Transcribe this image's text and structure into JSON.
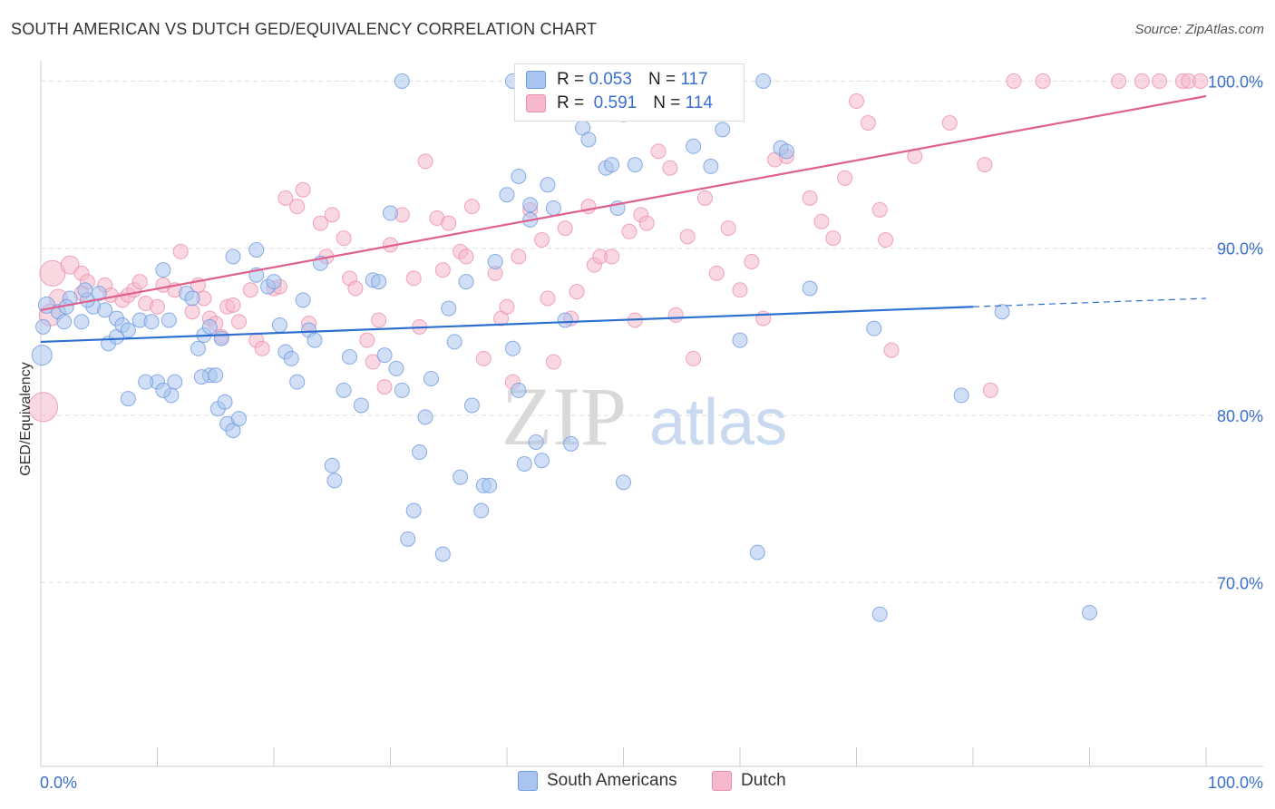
{
  "title": "SOUTH AMERICAN VS DUTCH GED/EQUIVALENCY CORRELATION CHART",
  "source": "Source: ZipAtlas.com",
  "watermark": {
    "zip": "ZIP",
    "atlas": "atlas"
  },
  "legend": {
    "rows": [
      {
        "r_label": "R =",
        "r_value": "0.053",
        "n_label": "N =",
        "n_value": "117"
      },
      {
        "r_label": "R =",
        "r_value": "0.591",
        "n_label": "N =",
        "n_value": "114"
      }
    ]
  },
  "bottom_legend": {
    "south_americans": "South Americans",
    "dutch": "Dutch"
  },
  "colors": {
    "blue_fill": "#a9c5ef",
    "blue_stroke": "#6f9be0",
    "blue_line": "#2d6fd0",
    "pink_fill": "#f6b8cb",
    "pink_stroke": "#ec8fae",
    "pink_line": "#e0608e",
    "tick_text": "#3a6fd0",
    "grid": "#dddddd"
  },
  "chart_data": {
    "type": "scatter",
    "title": "SOUTH AMERICAN VS DUTCH GED/EQUIVALENCY CORRELATION CHART",
    "xlabel": "",
    "ylabel": "GED/Equivalency",
    "xlim": [
      0,
      100
    ],
    "ylim": [
      59,
      101
    ],
    "x_tick_labels": [
      "0.0%",
      "100.0%"
    ],
    "y_ticks": [
      {
        "value": 100,
        "label": "100.0%"
      },
      {
        "value": 90,
        "label": "90.0%"
      },
      {
        "value": 80,
        "label": "80.0%"
      },
      {
        "value": 70,
        "label": "70.0%"
      }
    ],
    "grid": true,
    "legend_position": "top-center",
    "series": [
      {
        "name": "South Americans",
        "R": 0.053,
        "N": 117,
        "trend": {
          "x0": 0,
          "y0": 84.4,
          "x1": 80,
          "y1": 86.5,
          "dash_to_x": 100,
          "dash_to_y": 87.0
        },
        "points": [
          [
            0.5,
            86.6,
            9
          ],
          [
            1.5,
            86.2,
            8
          ],
          [
            2.0,
            85.6,
            8
          ],
          [
            2.5,
            87.0,
            8
          ],
          [
            2.2,
            86.5,
            8
          ],
          [
            0.2,
            85.3,
            8
          ],
          [
            0.1,
            83.6,
            11
          ],
          [
            4.5,
            86.5,
            8
          ],
          [
            3.5,
            85.6,
            8
          ],
          [
            4.0,
            86.9,
            8
          ],
          [
            3.8,
            87.5,
            8
          ],
          [
            5.5,
            86.3,
            8
          ],
          [
            5.0,
            87.3,
            8
          ],
          [
            6.5,
            85.8,
            8
          ],
          [
            5.8,
            84.3,
            8
          ],
          [
            6.5,
            84.7,
            8
          ],
          [
            7.0,
            85.4,
            8
          ],
          [
            7.5,
            85.1,
            8
          ],
          [
            8.5,
            85.7,
            8
          ],
          [
            9.5,
            85.6,
            8
          ],
          [
            10.5,
            88.7,
            8
          ],
          [
            11.0,
            85.7,
            8
          ],
          [
            12.5,
            87.3,
            8
          ],
          [
            13.0,
            87.0,
            8
          ],
          [
            10.0,
            82.0,
            8
          ],
          [
            11.5,
            82.0,
            8
          ],
          [
            11.2,
            81.2,
            8
          ],
          [
            10.5,
            81.5,
            8
          ],
          [
            9.0,
            82.0,
            8
          ],
          [
            7.5,
            81.0,
            8
          ],
          [
            14.5,
            82.4,
            8
          ],
          [
            13.8,
            82.3,
            8
          ],
          [
            15.0,
            82.4,
            8
          ],
          [
            15.2,
            80.4,
            8
          ],
          [
            15.8,
            80.8,
            8
          ],
          [
            16.0,
            79.5,
            8
          ],
          [
            16.5,
            79.1,
            8
          ],
          [
            17.0,
            79.8,
            8
          ],
          [
            14.0,
            84.8,
            8
          ],
          [
            14.5,
            85.3,
            8
          ],
          [
            15.5,
            84.6,
            8
          ],
          [
            13.5,
            84.0,
            8
          ],
          [
            16.5,
            89.5,
            8
          ],
          [
            18.5,
            89.9,
            8
          ],
          [
            18.5,
            88.4,
            8
          ],
          [
            19.5,
            87.7,
            8
          ],
          [
            20.0,
            88.0,
            8
          ],
          [
            20.5,
            85.4,
            8
          ],
          [
            21.0,
            83.8,
            8
          ],
          [
            21.5,
            83.4,
            8
          ],
          [
            22.0,
            82.0,
            8
          ],
          [
            22.5,
            86.9,
            8
          ],
          [
            23.0,
            85.1,
            8
          ],
          [
            23.5,
            84.5,
            8
          ],
          [
            24.0,
            89.1,
            8
          ],
          [
            25.0,
            77.0,
            8
          ],
          [
            25.2,
            76.1,
            8
          ],
          [
            26.0,
            81.5,
            8
          ],
          [
            26.5,
            83.5,
            8
          ],
          [
            27.5,
            80.6,
            8
          ],
          [
            28.5,
            88.1,
            8
          ],
          [
            29.0,
            88.0,
            8
          ],
          [
            30.0,
            92.1,
            8
          ],
          [
            29.5,
            83.6,
            8
          ],
          [
            30.5,
            82.8,
            8
          ],
          [
            31.0,
            81.5,
            8
          ],
          [
            32.0,
            74.3,
            8
          ],
          [
            31.5,
            72.6,
            8
          ],
          [
            32.5,
            77.8,
            8
          ],
          [
            33.0,
            79.9,
            8
          ],
          [
            33.5,
            82.2,
            8
          ],
          [
            34.5,
            71.7,
            8
          ],
          [
            35.0,
            86.4,
            8
          ],
          [
            35.5,
            84.4,
            8
          ],
          [
            36.0,
            76.3,
            8
          ],
          [
            36.5,
            88.0,
            8
          ],
          [
            37.0,
            80.6,
            8
          ],
          [
            37.8,
            74.3,
            8
          ],
          [
            38.0,
            75.8,
            8
          ],
          [
            38.5,
            75.8,
            8
          ],
          [
            39.0,
            89.2,
            8
          ],
          [
            40.0,
            93.2,
            8
          ],
          [
            40.5,
            84.0,
            8
          ],
          [
            41.0,
            81.5,
            8
          ],
          [
            41.5,
            77.1,
            8
          ],
          [
            42.0,
            91.7,
            8
          ],
          [
            42.5,
            78.4,
            8
          ],
          [
            43.0,
            77.3,
            8
          ],
          [
            43.5,
            93.8,
            8
          ],
          [
            44.0,
            92.4,
            8
          ],
          [
            45.0,
            85.7,
            8
          ],
          [
            45.5,
            78.3,
            8
          ],
          [
            46.5,
            97.2,
            8
          ],
          [
            47.0,
            96.5,
            8
          ],
          [
            48.5,
            94.8,
            8
          ],
          [
            49.0,
            95.0,
            8
          ],
          [
            31.0,
            100.0,
            8
          ],
          [
            40.5,
            100.0,
            8
          ],
          [
            41.0,
            94.3,
            8
          ],
          [
            42.0,
            92.6,
            8
          ],
          [
            50.0,
            76.0,
            8
          ],
          [
            49.5,
            92.4,
            8
          ],
          [
            51.0,
            95.0,
            8
          ],
          [
            52.5,
            100.0,
            8
          ],
          [
            55.5,
            100.0,
            8
          ],
          [
            56.0,
            96.1,
            8
          ],
          [
            57.5,
            94.9,
            8
          ],
          [
            58.5,
            97.1,
            8
          ],
          [
            60.0,
            84.5,
            8
          ],
          [
            61.5,
            71.8,
            8
          ],
          [
            62.0,
            100.0,
            8
          ],
          [
            63.5,
            96.0,
            8
          ],
          [
            64.0,
            95.8,
            8
          ],
          [
            66.0,
            87.6,
            8
          ],
          [
            71.5,
            85.2,
            8
          ],
          [
            72.0,
            68.1,
            8
          ],
          [
            79.0,
            81.2,
            8
          ],
          [
            82.5,
            86.2,
            8
          ],
          [
            90.0,
            68.2,
            8
          ]
        ]
      },
      {
        "name": "Dutch",
        "R": 0.591,
        "N": 114,
        "trend": {
          "x0": 0,
          "y0": 86.3,
          "x1": 100,
          "y1": 99.1
        },
        "points": [
          [
            0.2,
            80.5,
            16
          ],
          [
            1.0,
            88.5,
            14
          ],
          [
            1.5,
            87.0,
            10
          ],
          [
            0.8,
            86.0,
            12
          ],
          [
            2.5,
            89.0,
            10
          ],
          [
            3.5,
            88.5,
            8
          ],
          [
            4.0,
            88.0,
            8
          ],
          [
            3.5,
            87.3,
            8
          ],
          [
            5.5,
            87.8,
            8
          ],
          [
            6.0,
            87.2,
            8
          ],
          [
            7.0,
            86.9,
            8
          ],
          [
            7.5,
            87.2,
            8
          ],
          [
            8.0,
            87.5,
            8
          ],
          [
            8.5,
            88.0,
            8
          ],
          [
            9.0,
            86.7,
            8
          ],
          [
            10.0,
            86.5,
            8
          ],
          [
            10.5,
            87.8,
            8
          ],
          [
            11.5,
            87.5,
            8
          ],
          [
            12.0,
            89.8,
            8
          ],
          [
            13.0,
            86.2,
            8
          ],
          [
            13.5,
            87.8,
            8
          ],
          [
            14.0,
            87.0,
            8
          ],
          [
            14.5,
            85.8,
            8
          ],
          [
            15.0,
            85.5,
            8
          ],
          [
            15.5,
            84.7,
            8
          ],
          [
            16.0,
            86.5,
            8
          ],
          [
            16.5,
            86.6,
            8
          ],
          [
            17.0,
            85.6,
            8
          ],
          [
            18.0,
            87.5,
            8
          ],
          [
            18.5,
            84.5,
            8
          ],
          [
            19.0,
            84.0,
            8
          ],
          [
            20.0,
            87.6,
            8
          ],
          [
            20.5,
            87.7,
            8
          ],
          [
            21.0,
            93.0,
            8
          ],
          [
            22.0,
            92.5,
            8
          ],
          [
            22.5,
            93.5,
            8
          ],
          [
            23.0,
            85.5,
            8
          ],
          [
            24.0,
            91.5,
            8
          ],
          [
            24.5,
            89.5,
            8
          ],
          [
            25.0,
            92.0,
            8
          ],
          [
            26.0,
            90.6,
            8
          ],
          [
            26.5,
            88.2,
            8
          ],
          [
            27.0,
            87.6,
            8
          ],
          [
            28.0,
            84.5,
            8
          ],
          [
            28.5,
            83.2,
            8
          ],
          [
            29.0,
            85.7,
            8
          ],
          [
            29.5,
            81.7,
            8
          ],
          [
            30.0,
            90.2,
            8
          ],
          [
            31.0,
            92.0,
            8
          ],
          [
            32.0,
            88.2,
            8
          ],
          [
            32.5,
            85.3,
            8
          ],
          [
            33.0,
            95.2,
            8
          ],
          [
            34.0,
            91.8,
            8
          ],
          [
            34.5,
            88.7,
            8
          ],
          [
            35.0,
            91.5,
            8
          ],
          [
            36.0,
            89.8,
            8
          ],
          [
            36.5,
            89.5,
            8
          ],
          [
            37.0,
            92.5,
            8
          ],
          [
            38.0,
            83.4,
            8
          ],
          [
            39.0,
            88.5,
            8
          ],
          [
            39.5,
            85.8,
            8
          ],
          [
            40.0,
            86.5,
            8
          ],
          [
            40.5,
            82.0,
            8
          ],
          [
            41.0,
            89.5,
            8
          ],
          [
            42.0,
            92.3,
            8
          ],
          [
            43.0,
            90.5,
            8
          ],
          [
            43.5,
            87.0,
            8
          ],
          [
            44.0,
            83.2,
            8
          ],
          [
            45.0,
            91.2,
            8
          ],
          [
            45.5,
            85.8,
            8
          ],
          [
            46.0,
            87.4,
            8
          ],
          [
            47.0,
            92.5,
            8
          ],
          [
            47.5,
            89.0,
            8
          ],
          [
            48.0,
            89.5,
            8
          ],
          [
            49.0,
            89.5,
            8
          ],
          [
            50.0,
            98.0,
            8
          ],
          [
            50.5,
            91.0,
            8
          ],
          [
            51.0,
            85.7,
            8
          ],
          [
            51.5,
            92.0,
            8
          ],
          [
            52.0,
            91.5,
            8
          ],
          [
            53.0,
            95.8,
            8
          ],
          [
            54.0,
            94.8,
            8
          ],
          [
            54.5,
            86.0,
            8
          ],
          [
            55.5,
            90.7,
            8
          ],
          [
            56.0,
            83.4,
            8
          ],
          [
            57.0,
            93.0,
            8
          ],
          [
            58.0,
            88.5,
            8
          ],
          [
            59.0,
            91.2,
            8
          ],
          [
            60.0,
            87.5,
            8
          ],
          [
            61.0,
            89.2,
            8
          ],
          [
            62.0,
            85.8,
            8
          ],
          [
            63.0,
            95.3,
            8
          ],
          [
            64.0,
            95.5,
            8
          ],
          [
            66.0,
            93.0,
            8
          ],
          [
            67.0,
            91.6,
            8
          ],
          [
            68.0,
            90.6,
            8
          ],
          [
            69.0,
            94.2,
            8
          ],
          [
            70.0,
            98.8,
            8
          ],
          [
            71.0,
            97.5,
            8
          ],
          [
            72.0,
            92.3,
            8
          ],
          [
            72.5,
            90.5,
            8
          ],
          [
            73.0,
            83.9,
            8
          ],
          [
            75.0,
            95.5,
            8
          ],
          [
            78.0,
            97.5,
            8
          ],
          [
            81.0,
            95.0,
            8
          ],
          [
            81.5,
            81.5,
            8
          ],
          [
            83.5,
            100.0,
            8
          ],
          [
            86.0,
            100.0,
            8
          ],
          [
            92.5,
            100.0,
            8
          ],
          [
            94.5,
            100.0,
            8
          ],
          [
            96.0,
            100.0,
            8
          ],
          [
            98.0,
            100.0,
            8
          ],
          [
            98.5,
            100.0,
            8
          ],
          [
            99.5,
            100.0,
            8
          ]
        ]
      }
    ]
  }
}
